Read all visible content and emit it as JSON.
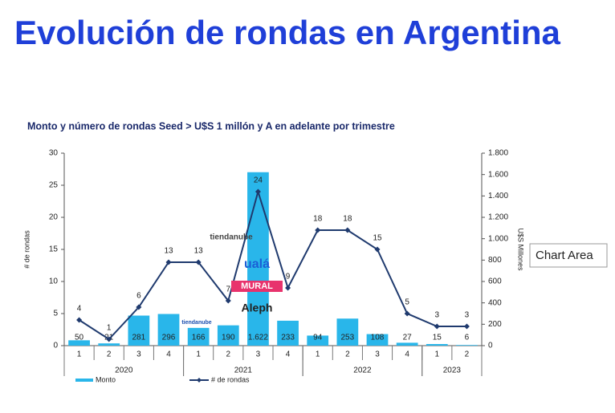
{
  "header": {
    "title": "Evolución de rondas en Argentina"
  },
  "chart_data": {
    "type": "bar-line",
    "title": "Monto y número de rondas Seed > U$S 1 millón y A en adelante por trimestre",
    "categories": [
      "1",
      "2",
      "3",
      "4",
      "1",
      "2",
      "3",
      "4",
      "1",
      "2",
      "3",
      "4",
      "1",
      "2"
    ],
    "x_groups": [
      "2020",
      "2021",
      "2022",
      "2023"
    ],
    "ylabel": "# de rondas",
    "y2label": "U$S Millones",
    "ylim": [
      0,
      30
    ],
    "yticks": [
      0,
      5,
      10,
      15,
      20,
      25,
      30
    ],
    "y2lim": [
      0,
      1800
    ],
    "y2ticks": [
      0,
      200,
      400,
      600,
      800,
      {
        "value": 1000,
        "label": "1.000"
      },
      {
        "value": 1200,
        "label": "1.200"
      },
      {
        "value": 1400,
        "label": "1.400"
      },
      {
        "value": 1600,
        "label": "1.600"
      },
      {
        "value": 1800,
        "label": "1.800"
      }
    ],
    "series": [
      {
        "name": "Monto",
        "type": "bar",
        "axis": "y2",
        "color": "#29b6ea",
        "values": [
          50,
          21,
          281,
          296,
          166,
          190,
          1622,
          233,
          94,
          253,
          108,
          27,
          15,
          6
        ],
        "value_labels": [
          "50",
          "21",
          "281",
          "296",
          "166",
          "190",
          "1.622",
          "233",
          "94",
          "253",
          "108",
          "27",
          "15",
          "6"
        ]
      },
      {
        "name": "# de rondas",
        "type": "line",
        "axis": "y",
        "color": "#1f3a6e",
        "values": [
          4,
          1,
          6,
          13,
          13,
          7,
          24,
          9,
          18,
          18,
          15,
          5,
          3,
          3
        ]
      }
    ],
    "annotations": [
      "tiendanube",
      "tiendanube",
      "ualá",
      "MURAL",
      "Aleph"
    ]
  },
  "tooltip": "Chart Area"
}
